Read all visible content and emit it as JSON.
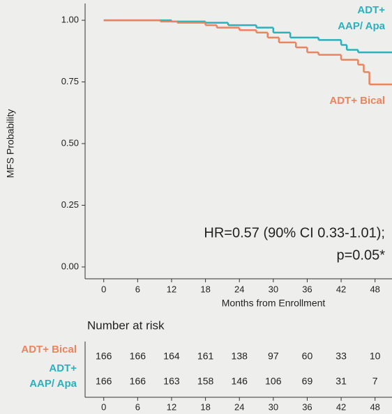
{
  "chart_data": {
    "type": "line",
    "step": "post",
    "y_label": "MFS Probability",
    "x_label": "Months from Enrollment",
    "xlim": [
      -3.3,
      51
    ],
    "ylim": [
      -0.048,
      1.068
    ],
    "xticks": [
      0,
      6,
      12,
      18,
      24,
      30,
      36,
      42,
      48
    ],
    "yticks": [
      {
        "value": 0,
        "label": "0.00"
      },
      {
        "value": 0.25,
        "label": "0.25"
      },
      {
        "value": 0.5,
        "label": "0.50"
      },
      {
        "value": 0.75,
        "label": "0.75"
      },
      {
        "value": 1,
        "label": "1.00"
      }
    ],
    "series": [
      {
        "name": [
          "ADT+",
          "AAP/ Apa"
        ],
        "color": "#2bb0bc",
        "x": [
          0,
          12,
          18,
          22,
          27,
          30,
          33,
          38,
          42,
          43,
          45
        ],
        "values": [
          1,
          0.995,
          0.99,
          0.98,
          0.97,
          0.95,
          0.93,
          0.92,
          0.9,
          0.88,
          0.87
        ]
      },
      {
        "name": [
          "ADT+ Bical"
        ],
        "color": "#e8845f",
        "x": [
          0,
          10,
          13,
          18,
          20,
          24,
          27,
          29,
          31,
          34,
          36,
          38,
          42,
          45,
          46,
          47
        ],
        "values": [
          1,
          0.995,
          0.99,
          0.98,
          0.97,
          0.96,
          0.95,
          0.93,
          0.91,
          0.89,
          0.87,
          0.86,
          0.84,
          0.82,
          0.79,
          0.74
        ]
      }
    ],
    "annotations": [
      "HR=0.57 (90% CI 0.33-1.01);",
      "p=0.05*"
    ]
  },
  "risk_table": {
    "title": "Number at risk",
    "times": [
      0,
      6,
      12,
      18,
      24,
      30,
      36,
      42,
      48
    ],
    "rows": [
      {
        "label": [
          "ADT+ Bical"
        ],
        "color": "#e8845f",
        "values": [
          166,
          166,
          164,
          161,
          138,
          97,
          60,
          33,
          10
        ]
      },
      {
        "label": [
          "ADT+",
          "AAP/ Apa"
        ],
        "color": "#2bb0bc",
        "values": [
          166,
          166,
          163,
          158,
          146,
          106,
          69,
          31,
          7
        ]
      }
    ]
  }
}
